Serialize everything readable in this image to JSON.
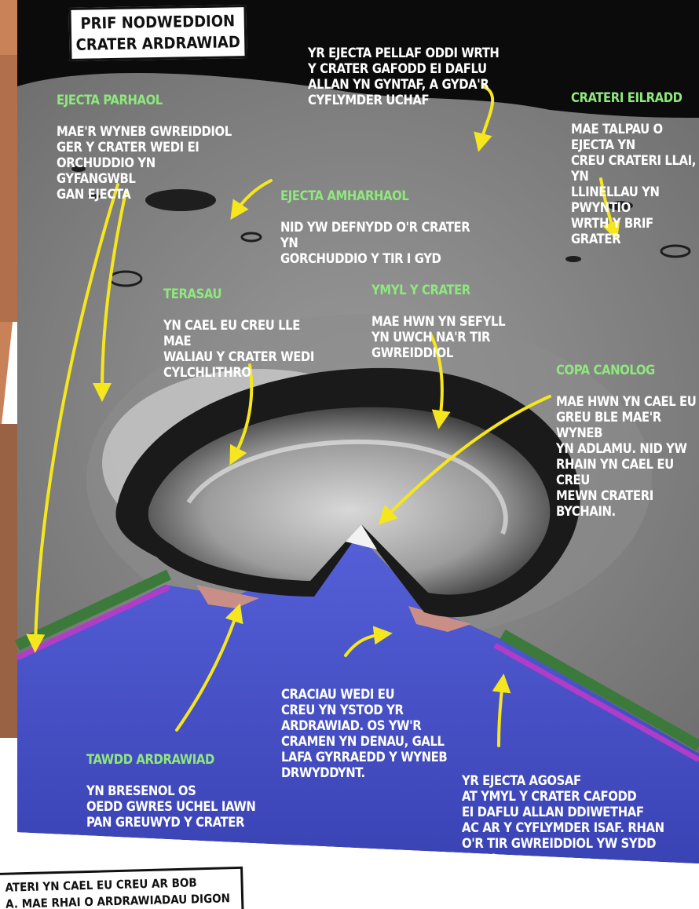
{
  "title": {
    "line1": "PRIF NODWEDDION",
    "line2": "CRATER ARDRAWIAD"
  },
  "labels": {
    "furthest_ejecta": {
      "text": "YR EJECTA PELLAF ODDI WRTH\nY CRATER GAFODD EI DAFLU\nALLAN YN GYNTAF, A GYDA'R\nCYFLYMDER UCHAF"
    },
    "continuous_ejecta": {
      "heading": "EJECTA PARHAOL",
      "text": "MAE'R WYNEB GWREIDDIOL\nGER Y CRATER WEDI EI\nORCHUDDIO YN GYFANGWBL\nGAN EJECTA"
    },
    "secondary_craters": {
      "heading": "CRATERI EILRADD",
      "text": "MAE TALPAU O EJECTA YN\nCREU CRATERI LLAI, YN\nLLINELLAU YN PWYNTIO\nWRTH Y BRIF GRATER"
    },
    "discontinuous_ejecta": {
      "heading": "EJECTA AMHARHAOL",
      "text": "NID YW DEFNYDD O'R CRATER YN\nGORCHUDDIO Y TIR I GYD"
    },
    "terraces": {
      "heading": "TERASAU",
      "text": "YN CAEL EU CREU LLE MAE\nWALIAU Y CRATER WEDI\nCYLCHLITHRO"
    },
    "crater_rim": {
      "heading": "YMYL Y CRATER",
      "text": "MAE HWN YN SEFYLL\nYN UWCH NA'R TIR GWREIDDIOL"
    },
    "central_peak": {
      "heading": "COPA CANOLOG",
      "text": "MAE HWN YN CAEL EU\nGREU BLE MAE'R WYNEB\nYN ADLAMU. NID YW\nRHAIN YN CAEL EU CREU\nMEWN CRATERI BYCHAIN."
    },
    "impact_melt": {
      "heading": "TAWDD ARDRAWIAD",
      "text": "YN BRESENOL OS\nOEDD GWRES UCHEL IAWN\nPAN GREUWYD Y CRATER"
    },
    "cracks": {
      "text": "CRACIAU WEDI EU\nCREU YN YSTOD YR\nARDRAWIAD. OS YW'R\nCRAMEN YN DENAU, GALL\nLAFA GYRRAEDD Y WYNEB\nDRWYDDYNT."
    },
    "nearest_ejecta": {
      "text": "YR EJECTA AGOSAF\nAT YMYL Y CRATER CAFODD\nEI DAFLU ALLAN DDIWETHAF\nAC AR Y CYFLYMDER ISAF. RHAN\nO'R TIR GWREIDDIOL YW SYDD WEDI\nEI DROI BEN UCHAF I LAWR."
    }
  },
  "bottom_box": {
    "text": "ATERI YN CAEL EU CREU AR BOB\nA. MAE RHAI O ARDRAWIADAU DIGON"
  },
  "colors": {
    "heading": "#8fe87e",
    "text": "#ffffff",
    "arrow": "#f5e61e",
    "crust": "#4a56d0",
    "ejecta_layer": "#b03cc8",
    "surface_layer": "#3b7a3b",
    "melt": "#c98f86",
    "sky": "#0b0b0b"
  }
}
